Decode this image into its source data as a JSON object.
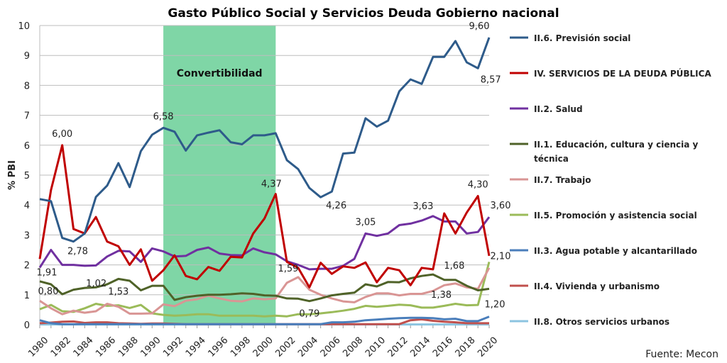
{
  "chart_data": {
    "type": "line",
    "title": "Gasto Público Social y Servicios Deuda Gobierno nacional",
    "ylabel": "% PBI",
    "xlabel": "",
    "ylim": [
      0,
      10
    ],
    "yticks": [
      "0",
      "1",
      "2",
      "3",
      "4",
      "5",
      "6",
      "7",
      "8",
      "9",
      "10"
    ],
    "xtick_labels": [
      "1980",
      "1982",
      "1984",
      "1986",
      "1988",
      "1990",
      "1992",
      "1994",
      "1996",
      "1998",
      "2000",
      "2002",
      "2004",
      "2006",
      "2008",
      "2010",
      "2012",
      "2014",
      "2016",
      "2018",
      "2020"
    ],
    "grid": "horizontal",
    "legend_position": "right",
    "shaded_period": {
      "label": "Convertibilidad",
      "start": 1991,
      "end": 2001,
      "color": "#7fd6a6"
    },
    "source": "Fuente: Mecon",
    "x": [
      1980,
      1981,
      1982,
      1983,
      1984,
      1985,
      1986,
      1987,
      1988,
      1989,
      1990,
      1991,
      1992,
      1993,
      1994,
      1995,
      1996,
      1997,
      1998,
      1999,
      2000,
      2001,
      2002,
      2003,
      2004,
      2005,
      2006,
      2007,
      2008,
      2009,
      2010,
      2011,
      2012,
      2013,
      2014,
      2015,
      2016,
      2017,
      2018,
      2019,
      2020
    ],
    "series": [
      {
        "name": "II.6. Previsión social",
        "color": "#2e5b8a",
        "values": [
          4.2,
          4.13,
          2.9,
          2.78,
          3.05,
          4.27,
          4.65,
          5.4,
          4.6,
          5.8,
          6.35,
          6.58,
          6.45,
          5.82,
          6.33,
          6.42,
          6.5,
          6.1,
          6.03,
          6.33,
          6.33,
          6.4,
          5.5,
          5.2,
          4.57,
          4.26,
          4.45,
          5.72,
          5.75,
          6.9,
          6.62,
          6.82,
          7.8,
          8.2,
          8.05,
          8.95,
          8.95,
          9.48,
          8.77,
          8.57,
          9.6
        ]
      },
      {
        "name": "IV. SERVICIOS DE LA DEUDA PÚBLICA",
        "color": "#c00000",
        "values": [
          2.2,
          4.5,
          6.0,
          3.2,
          3.05,
          3.6,
          2.78,
          2.62,
          2.0,
          2.52,
          1.47,
          1.82,
          2.32,
          1.63,
          1.52,
          1.93,
          1.8,
          2.27,
          2.25,
          3.05,
          3.55,
          4.37,
          2.1,
          1.9,
          1.25,
          2.07,
          1.7,
          1.95,
          1.9,
          2.08,
          1.42,
          1.9,
          1.82,
          1.32,
          1.9,
          1.85,
          3.72,
          3.05,
          3.75,
          4.3,
          2.3
        ]
      },
      {
        "name": "II.2. Salud",
        "color": "#7030a0",
        "values": [
          1.91,
          2.5,
          2.0,
          2.0,
          1.97,
          1.98,
          2.28,
          2.47,
          2.45,
          2.1,
          2.55,
          2.45,
          2.28,
          2.3,
          2.5,
          2.58,
          2.38,
          2.33,
          2.32,
          2.55,
          2.42,
          2.35,
          2.12,
          2.0,
          1.85,
          1.87,
          1.87,
          1.97,
          2.2,
          3.05,
          2.97,
          3.05,
          3.33,
          3.38,
          3.48,
          3.63,
          3.45,
          3.45,
          3.05,
          3.1,
          3.6
        ]
      },
      {
        "name": "II.1. Educación, cultura y ciencia y técnica",
        "color": "#4f6228",
        "values": [
          1.45,
          1.35,
          1.02,
          1.17,
          1.23,
          1.25,
          1.35,
          1.53,
          1.47,
          1.15,
          1.3,
          1.3,
          0.83,
          0.92,
          0.97,
          1.0,
          1.0,
          1.02,
          1.05,
          1.03,
          0.98,
          0.97,
          0.88,
          0.87,
          0.79,
          0.88,
          0.98,
          1.03,
          1.07,
          1.35,
          1.28,
          1.43,
          1.42,
          1.55,
          1.63,
          1.68,
          1.5,
          1.5,
          1.3,
          1.15,
          1.2
        ]
      },
      {
        "name": "II.7. Trabajo",
        "color": "#d99594",
        "values": [
          0.8,
          0.55,
          0.35,
          0.47,
          0.4,
          0.45,
          0.7,
          0.6,
          0.37,
          0.37,
          0.38,
          0.68,
          0.62,
          0.8,
          0.85,
          0.97,
          0.88,
          0.8,
          0.78,
          0.88,
          0.85,
          0.88,
          1.4,
          1.59,
          1.17,
          1.0,
          0.88,
          0.78,
          0.75,
          0.93,
          1.05,
          1.05,
          0.98,
          1.03,
          1.03,
          1.13,
          1.32,
          1.38,
          1.25,
          1.2,
          1.9
        ]
      },
      {
        "name": "II.5. Promoción y asistencia social",
        "color": "#9bbb59",
        "values": [
          0.52,
          0.66,
          0.45,
          0.43,
          0.55,
          0.7,
          0.63,
          0.65,
          0.56,
          0.66,
          0.38,
          0.33,
          0.3,
          0.32,
          0.35,
          0.35,
          0.3,
          0.3,
          0.3,
          0.3,
          0.28,
          0.3,
          0.28,
          0.35,
          0.35,
          0.38,
          0.42,
          0.47,
          0.53,
          0.63,
          0.6,
          0.63,
          0.67,
          0.65,
          0.57,
          0.57,
          0.63,
          0.7,
          0.65,
          0.66,
          2.1
        ]
      },
      {
        "name": "II.3. Agua potable y alcantarillado",
        "color": "#4a7ebb",
        "values": [
          0.15,
          0.05,
          0.02,
          0.02,
          0.02,
          0.02,
          0.02,
          0.02,
          0.02,
          0.02,
          0.02,
          0.02,
          0.02,
          0.02,
          0.02,
          0.02,
          0.02,
          0.02,
          0.02,
          0.02,
          0.02,
          0.02,
          0.02,
          0.02,
          0.02,
          0.02,
          0.08,
          0.08,
          0.1,
          0.15,
          0.17,
          0.2,
          0.22,
          0.23,
          0.23,
          0.22,
          0.18,
          0.2,
          0.12,
          0.12,
          0.27
        ]
      },
      {
        "name": "II.4. Vivienda y urbanismo",
        "color": "#c0504d",
        "values": [
          0.05,
          0.07,
          0.1,
          0.11,
          0.06,
          0.08,
          0.08,
          0.05,
          0.04,
          0.03,
          0.04,
          0.04,
          0.03,
          0.02,
          0.02,
          0.02,
          0.02,
          0.02,
          0.02,
          0.02,
          0.02,
          0.02,
          0.02,
          0.02,
          0.02,
          0.02,
          0.02,
          0.02,
          0.02,
          0.02,
          0.02,
          0.02,
          0.02,
          0.15,
          0.18,
          0.13,
          0.1,
          0.08,
          0.05,
          0.05,
          0.05
        ]
      },
      {
        "name": "II.8. Otros servicios urbanos",
        "color": "#8cc4e0",
        "values": [
          0.01,
          0.01,
          0.01,
          0.01,
          0.01,
          0.01,
          0.01,
          0.01,
          0.01,
          0.01,
          0.01,
          0.01,
          0.01,
          0.01,
          0.01,
          0.01,
          0.01,
          0.01,
          0.01,
          0.01,
          0.01,
          0.01,
          0.01,
          0.01,
          0.01,
          0.01,
          0.01,
          0.01,
          0.01,
          0.01,
          0.01,
          0.01,
          0.01,
          0.01,
          0.01,
          0.01,
          0.01,
          0.01,
          0.01,
          0.01,
          0.01
        ]
      }
    ],
    "annotations": [
      {
        "series": 1,
        "year": 1982,
        "text": "6,00"
      },
      {
        "series": 0,
        "year": 1991,
        "text": "6,58"
      },
      {
        "series": 0,
        "year": 1983,
        "text": "2,78"
      },
      {
        "series": 2,
        "year": 1980,
        "text": "1,91"
      },
      {
        "series": 3,
        "year": 1982,
        "text": "1,02"
      },
      {
        "series": 4,
        "year": 1980,
        "text": "0,80"
      },
      {
        "series": 3,
        "year": 1987,
        "text": "1,53"
      },
      {
        "series": 1,
        "year": 2001,
        "text": "4,37"
      },
      {
        "series": 4,
        "year": 2003,
        "text": "1,59"
      },
      {
        "series": 3,
        "year": 2004,
        "text": "0,79"
      },
      {
        "series": 0,
        "year": 2005,
        "text": "4,26"
      },
      {
        "series": 2,
        "year": 2009,
        "text": "3,05"
      },
      {
        "series": 2,
        "year": 2015,
        "text": "3,63"
      },
      {
        "series": 3,
        "year": 2015,
        "text": "1,68"
      },
      {
        "series": 4,
        "year": 2017,
        "text": "1,38"
      },
      {
        "series": 1,
        "year": 2019,
        "text": "4,30"
      },
      {
        "series": 0,
        "year": 2020,
        "text": "9,60"
      },
      {
        "series": 0,
        "year": 2019,
        "text": "8,57"
      },
      {
        "series": 2,
        "year": 2020,
        "text": "3,60"
      },
      {
        "series": 5,
        "year": 2020,
        "text": "2,10"
      },
      {
        "series": 3,
        "year": 2020,
        "text": "1,20"
      }
    ]
  }
}
